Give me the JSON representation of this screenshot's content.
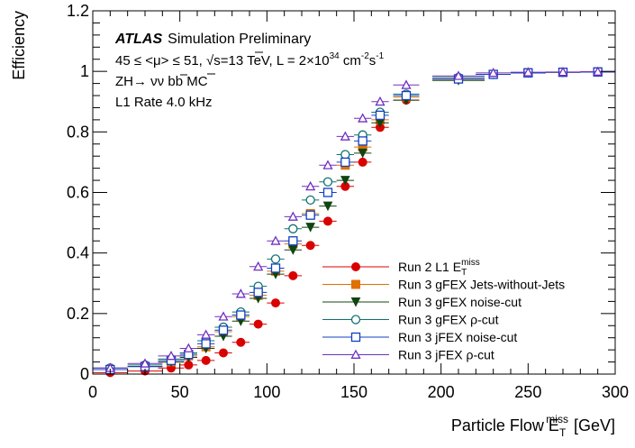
{
  "chart_data": {
    "type": "scatter",
    "xlabel": "Particle Flow E",
    "xlabel_sub": "T",
    "xlabel_sup": "miss",
    "xlabel_unit": "[GeV]",
    "ylabel": "Efficiency",
    "xlim": [
      0,
      300
    ],
    "ylim": [
      0,
      1.2
    ],
    "xticks": [
      0,
      50,
      100,
      150,
      200,
      250,
      300
    ],
    "yticks": [
      0,
      0.2,
      0.4,
      0.6,
      0.8,
      1,
      1.2
    ],
    "ytick_labels": [
      "0",
      "0.2",
      "0.4",
      "0.6",
      "0.8",
      "1",
      "1.2"
    ],
    "grid": false,
    "legend_position": "bottom-right",
    "annotations": {
      "experiment": "ATLAS",
      "status": "Simulation Preliminary",
      "line2_prefix": "45 ≤ <μ> ≤ 51, ",
      "line2_sqrt": "√",
      "line2_s": "s=13 TeV, L = 2×10",
      "line2_exp": "34",
      "line2_unit_cm": " cm",
      "line2_unit_cm_exp": "-2",
      "line2_unit_s": "s",
      "line2_unit_s_exp": "-1",
      "line3_prefix": "ZH→ ν",
      "line3_nubar": "ν",
      "line3_b": " b",
      "line3_bbar": "b",
      "line3_suffix": "  MC",
      "line4": "L1 Rate 4.0 kHz"
    },
    "x": [
      10,
      30,
      45,
      55,
      65,
      75,
      85,
      95,
      105,
      115,
      125,
      135,
      145,
      155,
      165,
      180,
      210,
      230,
      250,
      270,
      290
    ],
    "series": [
      {
        "name": "Run 2 L1 E",
        "name_sub": "T",
        "name_sup": "miss",
        "color": "#d90000",
        "marker": "circle-filled",
        "values": [
          0.005,
          0.01,
          0.02,
          0.03,
          0.045,
          0.07,
          0.105,
          0.165,
          0.235,
          0.325,
          0.425,
          0.505,
          0.62,
          0.7,
          0.815,
          0.905,
          0.975,
          0.99,
          0.995,
          0.997,
          0.998
        ]
      },
      {
        "name": "Run 3 gFEX Jets-without-Jets",
        "color": "#e07000",
        "marker": "square-filled",
        "values": [
          0.015,
          0.025,
          0.04,
          0.06,
          0.09,
          0.14,
          0.19,
          0.26,
          0.34,
          0.43,
          0.53,
          0.6,
          0.69,
          0.75,
          0.84,
          0.915,
          0.975,
          0.99,
          0.995,
          0.997,
          0.998
        ]
      },
      {
        "name": "Run 3 gFEX noise-cut",
        "color": "#114411",
        "marker": "triangle-down-filled",
        "values": [
          0.015,
          0.025,
          0.04,
          0.055,
          0.085,
          0.125,
          0.175,
          0.25,
          0.33,
          0.41,
          0.485,
          0.555,
          0.64,
          0.73,
          0.83,
          0.905,
          0.97,
          0.99,
          0.995,
          0.997,
          0.998
        ]
      },
      {
        "name": "Run 3 gFEX ρ-cut",
        "color": "#107070",
        "marker": "circle-open",
        "values": [
          0.02,
          0.03,
          0.05,
          0.07,
          0.11,
          0.155,
          0.205,
          0.29,
          0.38,
          0.48,
          0.575,
          0.635,
          0.725,
          0.79,
          0.865,
          0.925,
          0.98,
          0.99,
          0.995,
          0.997,
          0.998
        ]
      },
      {
        "name": "Run 3 jFEX noise-cut",
        "color": "#1040c0",
        "marker": "square-open",
        "values": [
          0.015,
          0.025,
          0.045,
          0.065,
          0.1,
          0.145,
          0.195,
          0.27,
          0.35,
          0.44,
          0.525,
          0.6,
          0.7,
          0.77,
          0.855,
          0.92,
          0.975,
          0.99,
          0.995,
          0.997,
          0.998
        ]
      },
      {
        "name": "Run 3 jFEX ρ-cut",
        "color": "#7030c0",
        "marker": "triangle-up-open",
        "values": [
          0.02,
          0.035,
          0.06,
          0.085,
          0.13,
          0.19,
          0.265,
          0.355,
          0.44,
          0.52,
          0.62,
          0.69,
          0.785,
          0.845,
          0.9,
          0.955,
          0.985,
          0.995,
          0.997,
          0.998,
          0.999
        ]
      }
    ]
  }
}
